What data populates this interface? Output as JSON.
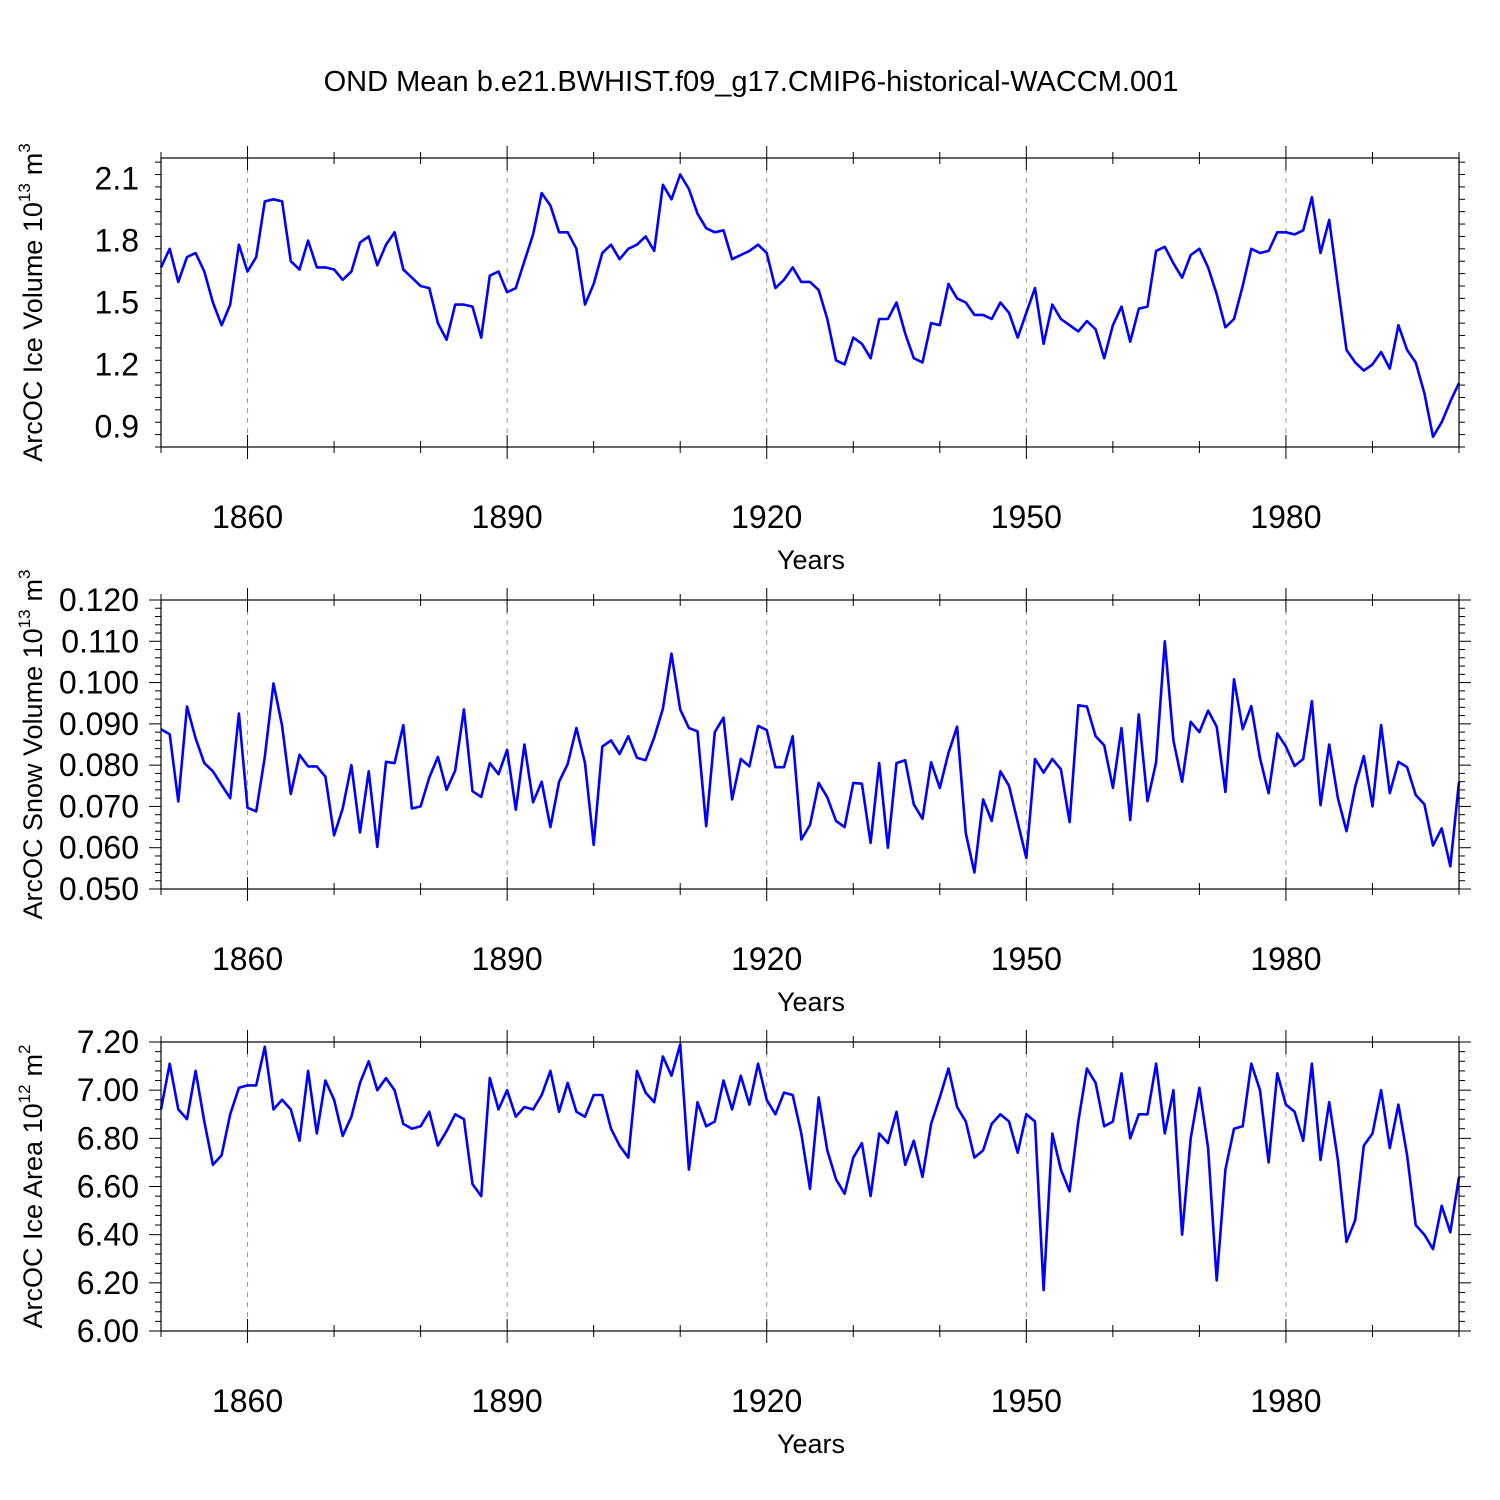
{
  "figure": {
    "title": "OND Mean b.e21.BWHIST.f09_g17.CMIP6-historical-WACCM.001",
    "line_color": "#0000ff",
    "grid_color": "#999999"
  },
  "chart_data": [
    {
      "type": "line",
      "title": "",
      "xlabel": "Years",
      "ylabel": "ArcOC Ice Volume 10",
      "ylabel_exp": "13",
      "ylabel_unit": "m",
      "ylabel_unit_exp": "3",
      "xlim": [
        1850,
        2000
      ],
      "ylim": [
        0.8,
        2.2
      ],
      "xticks": [
        1860,
        1890,
        1920,
        1950,
        1980
      ],
      "yticks": [
        0.9,
        1.2,
        1.5,
        1.8,
        2.1
      ],
      "ytick_labels": [
        "0.9",
        "1.2",
        "1.5",
        "1.8",
        "2.1"
      ],
      "grid": "vertical dashed at major x ticks",
      "x_start": 1850,
      "series": [
        {
          "name": "ArcOC Ice Volume",
          "values": [
            1.67,
            1.76,
            1.6,
            1.72,
            1.74,
            1.65,
            1.5,
            1.39,
            1.49,
            1.78,
            1.65,
            1.72,
            1.99,
            2.0,
            1.99,
            1.7,
            1.66,
            1.8,
            1.67,
            1.67,
            1.66,
            1.61,
            1.65,
            1.79,
            1.82,
            1.68,
            1.78,
            1.84,
            1.66,
            1.62,
            1.58,
            1.57,
            1.4,
            1.32,
            1.49,
            1.49,
            1.48,
            1.33,
            1.63,
            1.65,
            1.55,
            1.57,
            1.7,
            1.83,
            2.03,
            1.97,
            1.84,
            1.84,
            1.76,
            1.49,
            1.59,
            1.74,
            1.78,
            1.71,
            1.76,
            1.78,
            1.82,
            1.75,
            2.07,
            2.0,
            2.12,
            2.05,
            1.93,
            1.86,
            1.84,
            1.85,
            1.71,
            1.73,
            1.75,
            1.78,
            1.74,
            1.57,
            1.61,
            1.67,
            1.6,
            1.6,
            1.56,
            1.42,
            1.22,
            1.2,
            1.33,
            1.3,
            1.23,
            1.42,
            1.42,
            1.5,
            1.35,
            1.23,
            1.21,
            1.4,
            1.39,
            1.59,
            1.52,
            1.5,
            1.44,
            1.44,
            1.42,
            1.5,
            1.45,
            1.33,
            1.45,
            1.57,
            1.3,
            1.49,
            1.42,
            1.39,
            1.36,
            1.41,
            1.37,
            1.23,
            1.39,
            1.48,
            1.31,
            1.47,
            1.48,
            1.75,
            1.77,
            1.69,
            1.62,
            1.73,
            1.76,
            1.67,
            1.54,
            1.38,
            1.42,
            1.58,
            1.76,
            1.74,
            1.75,
            1.84,
            1.84,
            1.83,
            1.85,
            2.01,
            1.74,
            1.9,
            1.58,
            1.27,
            1.21,
            1.17,
            1.2,
            1.26,
            1.18,
            1.39,
            1.27,
            1.21,
            1.06,
            0.85,
            0.92,
            1.02,
            1.11
          ]
        }
      ]
    },
    {
      "type": "line",
      "title": "",
      "xlabel": "Years",
      "ylabel": "ArcOC Snow Volume 10",
      "ylabel_exp": "13",
      "ylabel_unit": "m",
      "ylabel_unit_exp": "3",
      "xlim": [
        1850,
        2000
      ],
      "ylim": [
        0.05,
        0.12
      ],
      "xticks": [
        1860,
        1890,
        1920,
        1950,
        1980
      ],
      "yticks": [
        0.05,
        0.06,
        0.07,
        0.08,
        0.09,
        0.1,
        0.11,
        0.12
      ],
      "ytick_labels": [
        "0.050",
        "0.060",
        "0.070",
        "0.080",
        "0.090",
        "0.100",
        "0.110",
        "0.120"
      ],
      "grid": "vertical dashed at major x ticks",
      "x_start": 1850,
      "series": [
        {
          "name": "ArcOC Snow Volume",
          "values": [
            0.0887,
            0.0875,
            0.0712,
            0.0942,
            0.0865,
            0.0805,
            0.0785,
            0.0752,
            0.072,
            0.0925,
            0.0697,
            0.0688,
            0.082,
            0.0998,
            0.0895,
            0.073,
            0.0825,
            0.0797,
            0.0797,
            0.0772,
            0.063,
            0.0695,
            0.08,
            0.0637,
            0.0785,
            0.0602,
            0.0808,
            0.0805,
            0.0897,
            0.0695,
            0.07,
            0.077,
            0.082,
            0.074,
            0.0787,
            0.0935,
            0.0737,
            0.0723,
            0.0805,
            0.0778,
            0.0837,
            0.0692,
            0.085,
            0.071,
            0.076,
            0.065,
            0.076,
            0.0803,
            0.089,
            0.0805,
            0.0607,
            0.0845,
            0.086,
            0.0827,
            0.087,
            0.0818,
            0.0812,
            0.0867,
            0.0937,
            0.107,
            0.0935,
            0.089,
            0.0882,
            0.0652,
            0.088,
            0.0915,
            0.0717,
            0.0815,
            0.0797,
            0.0895,
            0.0885,
            0.0795,
            0.0795,
            0.087,
            0.062,
            0.0655,
            0.0757,
            0.0722,
            0.0665,
            0.065,
            0.0757,
            0.0755,
            0.0612,
            0.0805,
            0.06,
            0.0805,
            0.0812,
            0.0705,
            0.067,
            0.0807,
            0.0745,
            0.083,
            0.0893,
            0.0635,
            0.054,
            0.0717,
            0.0665,
            0.0785,
            0.075,
            0.0662,
            0.0575,
            0.0815,
            0.0782,
            0.0815,
            0.079,
            0.0662,
            0.0945,
            0.0942,
            0.087,
            0.0848,
            0.0745,
            0.089,
            0.0667,
            0.0923,
            0.0713,
            0.0807,
            0.11,
            0.086,
            0.076,
            0.0905,
            0.088,
            0.0932,
            0.0893,
            0.0735,
            0.1008,
            0.0887,
            0.0943,
            0.0817,
            0.0732,
            0.0877,
            0.0845,
            0.0798,
            0.0815,
            0.0955,
            0.0703,
            0.085,
            0.072,
            0.064,
            0.0748,
            0.0822,
            0.07,
            0.0897,
            0.0732,
            0.0808,
            0.0795,
            0.0728,
            0.0705,
            0.0605,
            0.0647,
            0.0555,
            0.076
          ]
        }
      ]
    },
    {
      "type": "line",
      "title": "",
      "xlabel": "Years",
      "ylabel": "ArcOC Ice Area 10",
      "ylabel_exp": "12",
      "ylabel_unit": "m",
      "ylabel_unit_exp": "2",
      "xlim": [
        1850,
        2000
      ],
      "ylim": [
        6.0,
        7.2
      ],
      "xticks": [
        1860,
        1890,
        1920,
        1950,
        1980
      ],
      "yticks": [
        6.0,
        6.2,
        6.4,
        6.6,
        6.8,
        7.0,
        7.2
      ],
      "ytick_labels": [
        "6.00",
        "6.20",
        "6.40",
        "6.60",
        "6.80",
        "7.00",
        "7.20"
      ],
      "grid": "vertical dashed at major x ticks",
      "x_start": 1850,
      "series": [
        {
          "name": "ArcOC Ice Area",
          "values": [
            6.92,
            7.11,
            6.92,
            6.88,
            7.08,
            6.87,
            6.69,
            6.73,
            6.9,
            7.01,
            7.02,
            7.02,
            7.18,
            6.92,
            6.96,
            6.92,
            6.79,
            7.08,
            6.82,
            7.04,
            6.96,
            6.81,
            6.89,
            7.03,
            7.12,
            7.0,
            7.05,
            7.0,
            6.86,
            6.84,
            6.85,
            6.91,
            6.77,
            6.83,
            6.9,
            6.88,
            6.61,
            6.56,
            7.05,
            6.92,
            7.0,
            6.89,
            6.93,
            6.92,
            6.98,
            7.08,
            6.91,
            7.03,
            6.91,
            6.89,
            6.98,
            6.98,
            6.84,
            6.77,
            6.72,
            7.08,
            6.99,
            6.95,
            7.14,
            7.06,
            7.19,
            6.67,
            6.95,
            6.85,
            6.87,
            7.04,
            6.92,
            7.06,
            6.94,
            7.11,
            6.96,
            6.9,
            6.99,
            6.98,
            6.82,
            6.59,
            6.97,
            6.75,
            6.63,
            6.57,
            6.72,
            6.78,
            6.56,
            6.82,
            6.78,
            6.91,
            6.69,
            6.79,
            6.64,
            6.86,
            6.97,
            7.09,
            6.93,
            6.87,
            6.72,
            6.75,
            6.86,
            6.9,
            6.87,
            6.74,
            6.9,
            6.87,
            6.17,
            6.82,
            6.67,
            6.58,
            6.87,
            7.09,
            7.03,
            6.85,
            6.87,
            7.07,
            6.8,
            6.9,
            6.9,
            7.11,
            6.82,
            7.0,
            6.4,
            6.8,
            7.01,
            6.76,
            6.21,
            6.67,
            6.84,
            6.85,
            7.11,
            7.0,
            6.7,
            7.07,
            6.94,
            6.91,
            6.79,
            7.11,
            6.71,
            6.95,
            6.71,
            6.37,
            6.46,
            6.77,
            6.82,
            7.0,
            6.76,
            6.94,
            6.73,
            6.44,
            6.4,
            6.34,
            6.52,
            6.41,
            6.64
          ]
        }
      ]
    }
  ]
}
